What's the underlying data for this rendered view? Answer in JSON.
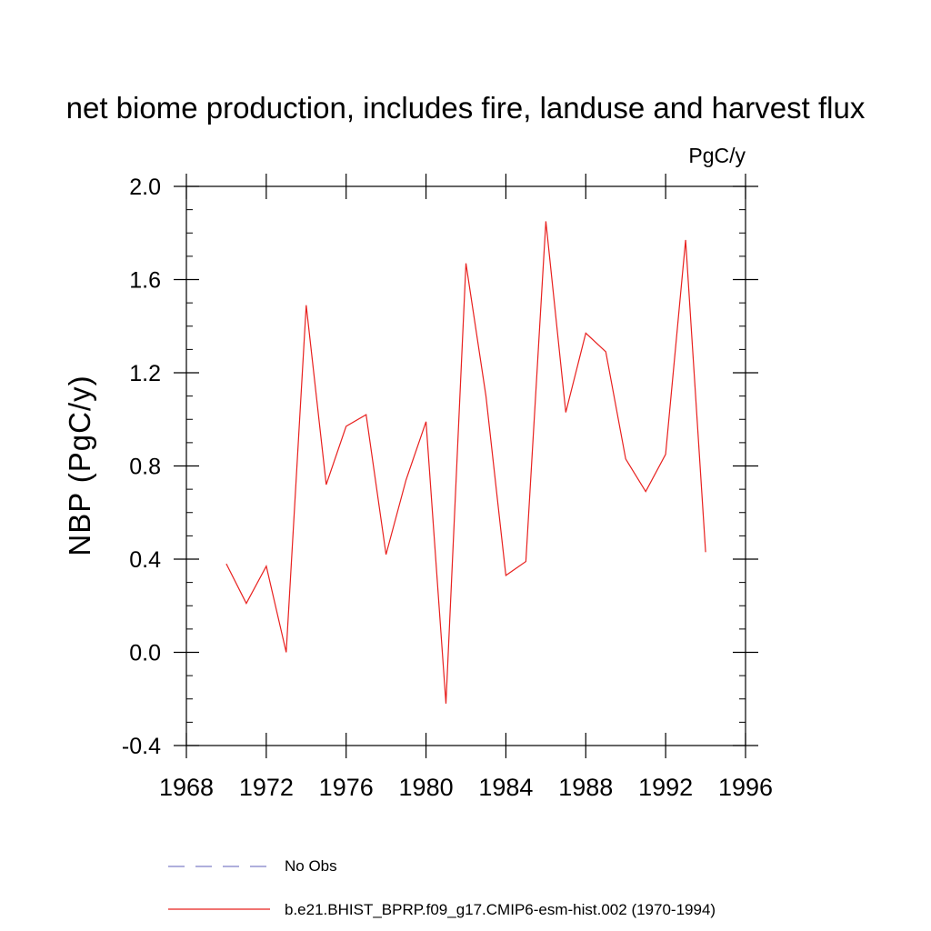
{
  "chart_data": {
    "type": "line",
    "title": "net biome production, includes fire, landuse and harvest flux",
    "units": "PgC/y",
    "ylabel": "NBP  (PgC/y)",
    "xlabel": "",
    "xlim": [
      1968,
      1996
    ],
    "ylim": [
      -0.4,
      2.0
    ],
    "x_ticks": [
      1968,
      1972,
      1976,
      1980,
      1984,
      1988,
      1992,
      1996
    ],
    "y_ticks": [
      "-0.4",
      "0.0",
      "0.4",
      "0.8",
      "1.2",
      "1.6",
      "2.0"
    ],
    "grid": false,
    "legend_position": "bottom",
    "series": [
      {
        "name": "No Obs",
        "color": "#7f7fc8",
        "style": "dashed",
        "x": [],
        "values": []
      },
      {
        "name": "b.e21.BHIST_BPRP.f09_g17.CMIP6-esm-hist.002 (1970-1994)",
        "color": "#e8201e",
        "style": "solid",
        "x": [
          1970,
          1971,
          1972,
          1973,
          1974,
          1975,
          1976,
          1977,
          1978,
          1979,
          1980,
          1981,
          1982,
          1983,
          1984,
          1985,
          1986,
          1987,
          1988,
          1989,
          1990,
          1991,
          1992,
          1993,
          1994
        ],
        "values": [
          0.38,
          0.21,
          0.37,
          0.0,
          1.49,
          0.72,
          0.97,
          1.02,
          0.42,
          0.74,
          0.99,
          -0.22,
          1.67,
          1.1,
          0.33,
          0.39,
          1.85,
          1.03,
          1.37,
          1.29,
          0.83,
          0.69,
          0.85,
          1.77,
          0.43
        ]
      }
    ]
  }
}
